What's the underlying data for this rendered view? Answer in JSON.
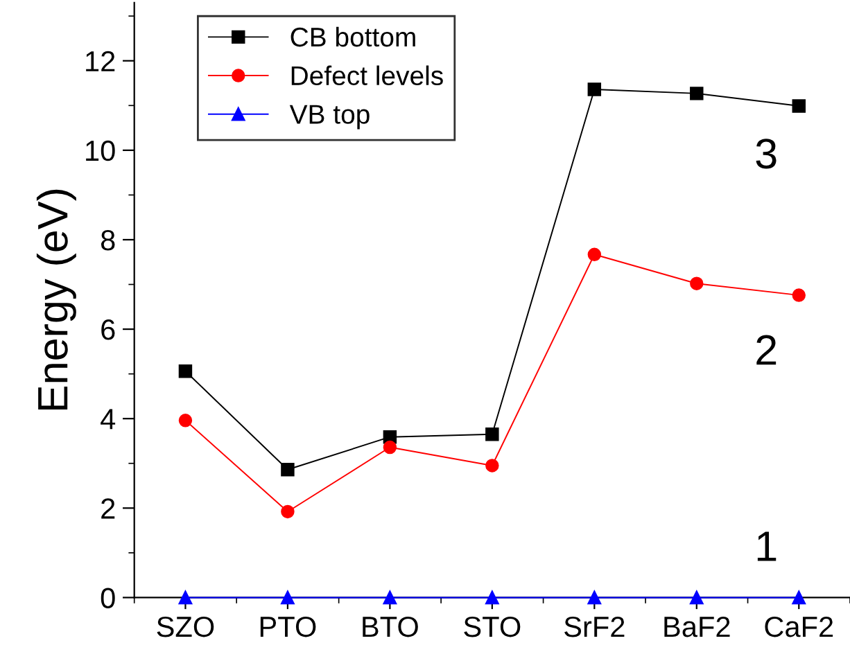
{
  "chart_data": {
    "type": "line",
    "ylabel": "Energy (eV)",
    "categories": [
      "SZO",
      "PTO",
      "BTO",
      "STO",
      "SrF2",
      "BaF2",
      "CaF2"
    ],
    "series": [
      {
        "name": "CB bottom",
        "color": "#000000",
        "marker": "square",
        "values": [
          5.06,
          2.86,
          3.59,
          3.65,
          11.36,
          11.27,
          10.99
        ]
      },
      {
        "name": "Defect levels",
        "color": "#ff0000",
        "marker": "circle",
        "values": [
          3.96,
          1.92,
          3.36,
          2.95,
          7.67,
          7.02,
          6.76
        ]
      },
      {
        "name": "VB top",
        "color": "#0000ff",
        "marker": "triangle",
        "values": [
          0,
          0,
          0,
          0,
          0,
          0,
          0
        ]
      }
    ],
    "ylim": [
      0,
      13.3
    ],
    "yticks": [
      0,
      2,
      4,
      6,
      8,
      10,
      12
    ],
    "grid": false,
    "legend": "top left",
    "line_style": "solid",
    "annotations": [
      "3",
      "2",
      "1"
    ]
  }
}
